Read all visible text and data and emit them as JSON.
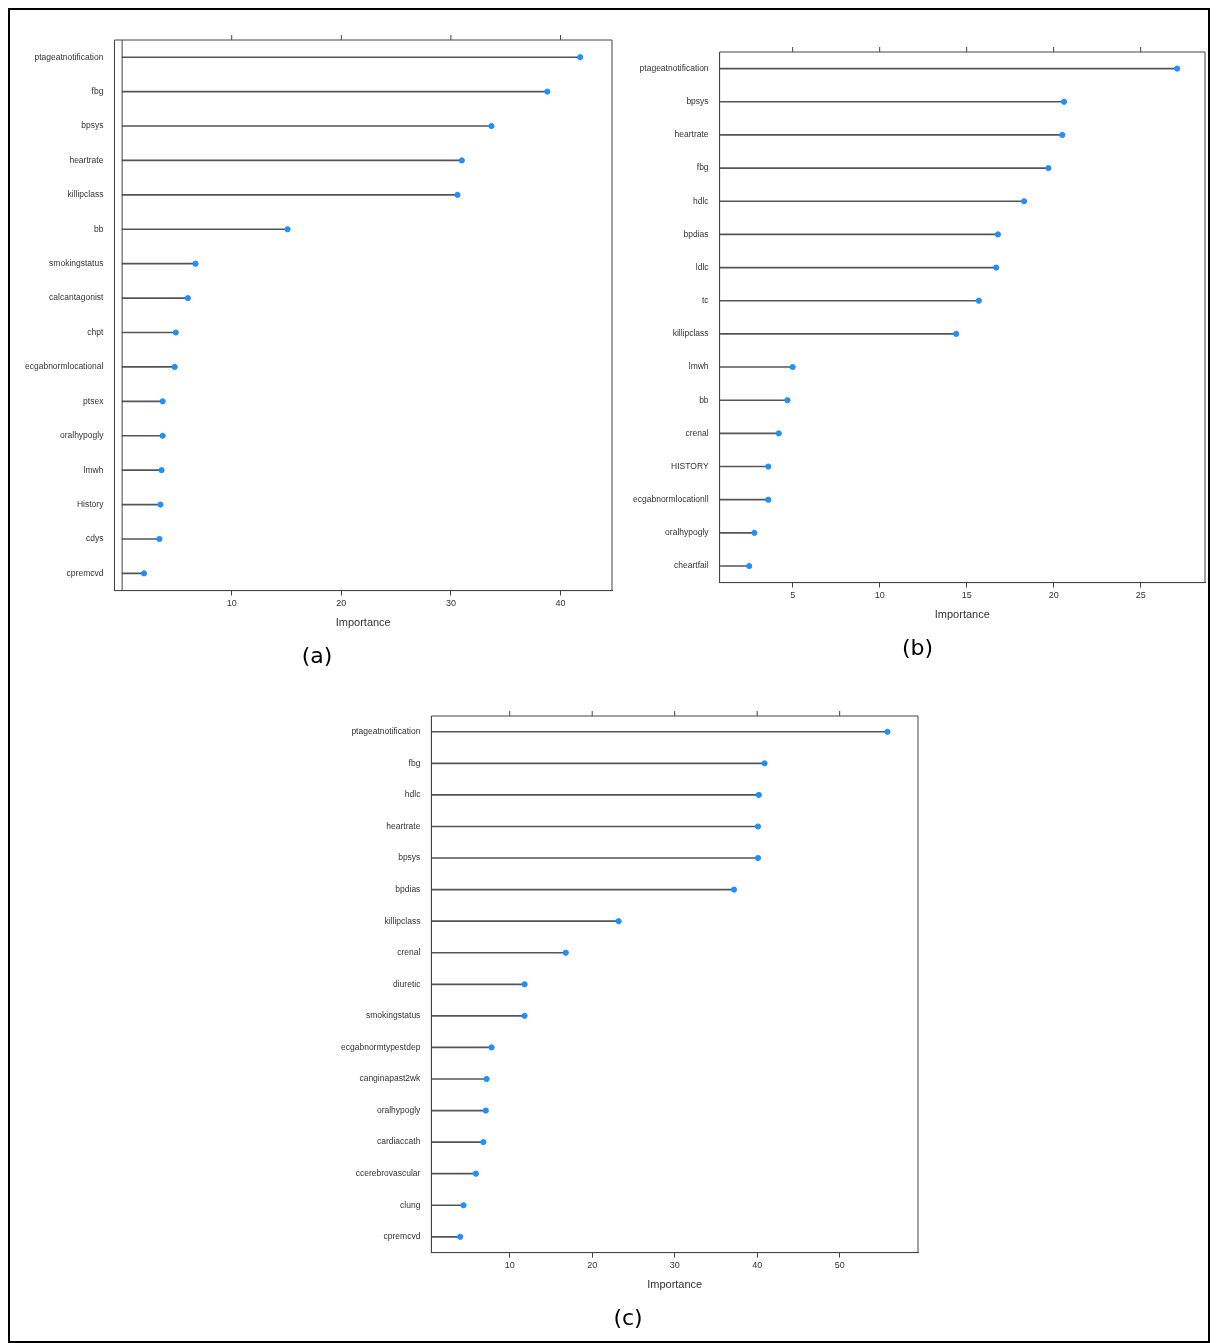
{
  "chart_data": [
    {
      "type": "lollipop",
      "orientation": "horizontal",
      "title": "(a)",
      "xlabel": "Importance",
      "color": "#1e90ff",
      "marker": "circle",
      "categories": [
        "ptageatnotification",
        "fbg",
        "bpsys",
        "heartrate",
        "killipclass",
        "bb",
        "smokingstatus",
        "calcantagonist",
        "chpt",
        "ecgabnormlocational",
        "ptsex",
        "oralhypogly",
        "lmwh",
        "History",
        "cdys",
        "cpremcvd"
      ],
      "values": [
        41.8,
        38.8,
        33.7,
        31.0,
        30.6,
        15.1,
        6.7,
        6.0,
        4.9,
        4.8,
        3.7,
        3.7,
        3.6,
        3.5,
        3.4,
        2.0
      ],
      "xlim": [
        -0.7,
        44.7
      ],
      "xticks": [
        10,
        20,
        30,
        40
      ],
      "ref_lines": [
        {
          "axis": "x",
          "value": 0
        }
      ],
      "grid": false,
      "legend": false
    },
    {
      "type": "lollipop",
      "orientation": "horizontal",
      "title": "(b)",
      "xlabel": "Importance",
      "color": "#1e90ff",
      "marker": "circle",
      "categories": [
        "ptageatnotification",
        "bpsys",
        "heartrate",
        "fbg",
        "hdlc",
        "bpdias",
        "ldlc",
        "tc",
        "killipclass",
        "lmwh",
        "bb",
        "crenal",
        "HISTORY",
        "ecgabnormlocationll",
        "oralhypogly",
        "cheartfail"
      ],
      "values": [
        27.1,
        20.6,
        20.5,
        19.7,
        18.3,
        16.8,
        16.7,
        15.7,
        14.4,
        5.0,
        4.7,
        4.2,
        3.6,
        3.6,
        2.8,
        2.5
      ],
      "xlim": [
        0.8,
        28.7
      ],
      "xticks": [
        5,
        10,
        15,
        20,
        25
      ],
      "grid": false,
      "legend": false
    },
    {
      "type": "lollipop",
      "orientation": "horizontal",
      "title": "(c)",
      "xlabel": "Importance",
      "color": "#1e90ff",
      "marker": "circle",
      "categories": [
        "ptageatnotification",
        "fbg",
        "hdlc",
        "heartrate",
        "bpsys",
        "bpdias",
        "killipclass",
        "crenal",
        "diuretic",
        "smokingstatus",
        "ecgabnormtypestdep",
        "canginapast2wk",
        "oralhypogly",
        "cardiaccath",
        "ccerebrovascular",
        "clung",
        "cpremcvd"
      ],
      "values": [
        55.8,
        40.9,
        40.2,
        40.1,
        40.1,
        37.2,
        23.2,
        16.8,
        11.8,
        11.8,
        7.8,
        7.2,
        7.1,
        6.8,
        5.9,
        4.4,
        4.0
      ],
      "xlim": [
        0.5,
        59.5
      ],
      "xticks": [
        10,
        20,
        30,
        40,
        50
      ],
      "grid": false,
      "legend": false
    }
  ]
}
